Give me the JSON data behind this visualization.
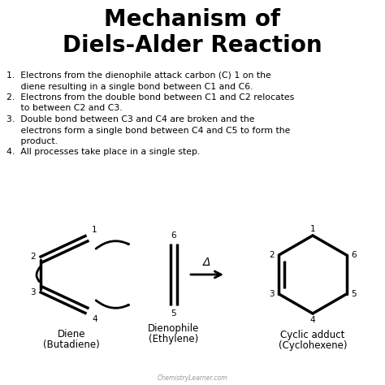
{
  "bg_color": "#ffffff",
  "text_color": "#000000",
  "title_line1": "Mechanism of",
  "title_line2": "Diels-Alder Reaction",
  "title_fontsize": 20,
  "body_fontsize": 7.8,
  "label_fontsize": 7.5,
  "struct_fontsize": 8.5,
  "footer": "ChemistryLearner.com",
  "footer_fontsize": 5.5,
  "body_lines": [
    "1.  Electrons from the dienophile attack carbon (C) 1 on the",
    "     diene resulting in a single bond between C1 and C6.",
    "2.  Electrons from the double bond between C1 and C2 relocates",
    "     to between C2 and C3.",
    "3.  Double bond between C3 and C4 are broken and the",
    "     electrons form a single bond between C4 and C5 to form the",
    "     product.",
    "4.  All processes take place in a single step."
  ]
}
